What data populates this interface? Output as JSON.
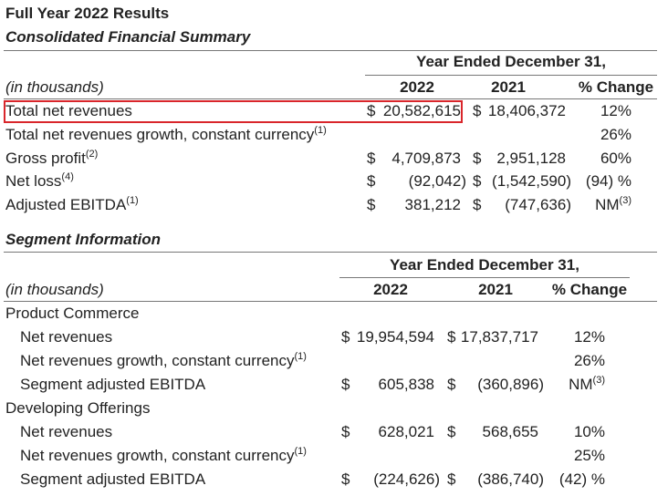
{
  "title": "Full Year 2022 Results",
  "sections": [
    {
      "heading": "Consolidated Financial Summary",
      "period": "Year Ended December 31,",
      "unit": "(in thousands)",
      "columns": [
        "2022",
        "2021",
        "% Change"
      ],
      "rows": [
        {
          "label": "Total net revenues",
          "highlighted": true,
          "cur1": "$",
          "val1": "20,582,615",
          "cur2": "$",
          "val2": "18,406,372",
          "change": "12%"
        },
        {
          "label": "Total net revenues growth, constant currency",
          "note": "(1)",
          "change": "26%"
        },
        {
          "label": "Gross profit",
          "note": "(2)",
          "cur1": "$",
          "val1": "4,709,873",
          "cur2": "$",
          "val2": "2,951,128",
          "change": "60%"
        },
        {
          "label": "Net loss",
          "note": "(4)",
          "cur1": "$",
          "val1": "(92,042)",
          "cur2": "$",
          "val2": "(1,542,590)",
          "change": "(94) %"
        },
        {
          "label": "Adjusted EBITDA",
          "note": "(1)",
          "cur1": "$",
          "val1": "381,212",
          "cur2": "$",
          "val2": "(747,636)",
          "change": "NM",
          "change_note": "(3)"
        }
      ]
    },
    {
      "heading": "Segment Information",
      "period": "Year Ended December 31,",
      "unit": "(in thousands)",
      "columns": [
        "2022",
        "2021",
        "% Change"
      ],
      "groups": [
        {
          "name": "Product Commerce",
          "rows": [
            {
              "label": "Net revenues",
              "cur1": "$",
              "val1": "19,954,594",
              "cur2": "$",
              "val2": "17,837,717",
              "change": "12%"
            },
            {
              "label": "Net revenues growth, constant currency",
              "note": "(1)",
              "change": "26%"
            },
            {
              "label": "Segment adjusted EBITDA",
              "cur1": "$",
              "val1": "605,838",
              "cur2": "$",
              "val2": "(360,896)",
              "change": "NM",
              "change_note": "(3)"
            }
          ]
        },
        {
          "name": "Developing Offerings",
          "rows": [
            {
              "label": "Net revenues",
              "cur1": "$",
              "val1": "628,021",
              "cur2": "$",
              "val2": "568,655",
              "change": "10%"
            },
            {
              "label": "Net revenues growth, constant currency",
              "note": "(1)",
              "change": "25%"
            },
            {
              "label": "Segment adjusted EBITDA",
              "cur1": "$",
              "val1": "(224,626)",
              "cur2": "$",
              "val2": "(386,740)",
              "change": "(42) %"
            }
          ]
        }
      ]
    }
  ]
}
